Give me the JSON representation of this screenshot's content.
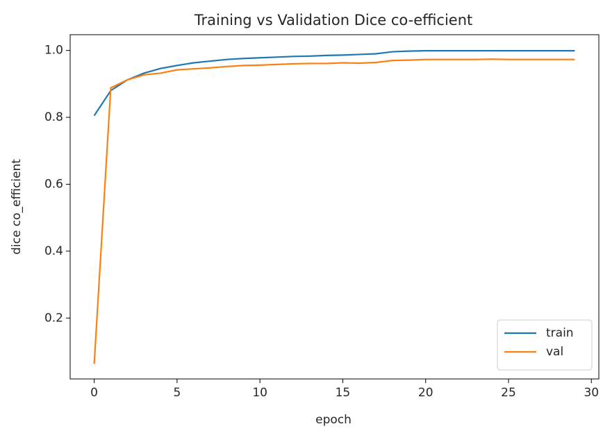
{
  "chart_data": {
    "type": "line",
    "title": "Training vs Validation Dice co-efficient",
    "x_label": "epoch",
    "y_label": "dice co_efficient",
    "x": [
      0,
      1,
      2,
      3,
      4,
      5,
      6,
      7,
      8,
      9,
      10,
      11,
      12,
      13,
      14,
      15,
      16,
      17,
      18,
      19,
      20,
      21,
      22,
      23,
      24,
      25,
      26,
      27,
      28,
      29
    ],
    "series": [
      {
        "name": "train",
        "color": "#1f77b4",
        "values": [
          0.805,
          0.88,
          0.912,
          0.932,
          0.946,
          0.955,
          0.963,
          0.968,
          0.973,
          0.976,
          0.978,
          0.98,
          0.982,
          0.983,
          0.985,
          0.986,
          0.988,
          0.99,
          0.996,
          0.998,
          0.999,
          0.999,
          0.999,
          0.999,
          0.999,
          0.999,
          0.999,
          0.999,
          0.999,
          0.999
        ]
      },
      {
        "name": "val",
        "color": "#ff7f0e",
        "values": [
          0.063,
          0.888,
          0.912,
          0.927,
          0.932,
          0.942,
          0.945,
          0.948,
          0.952,
          0.955,
          0.956,
          0.958,
          0.96,
          0.961,
          0.961,
          0.963,
          0.962,
          0.964,
          0.97,
          0.971,
          0.973,
          0.973,
          0.973,
          0.973,
          0.974,
          0.973,
          0.973,
          0.973,
          0.973,
          0.973
        ]
      }
    ],
    "xlim": [
      -1.45,
      30.45
    ],
    "xticks": [
      0,
      5,
      10,
      15,
      20,
      25,
      30
    ],
    "ylim": [
      0.018,
      1.047
    ],
    "yticks": [
      0.2,
      0.4,
      0.6,
      0.8,
      {
        "value": 1,
        "label": "1.0"
      }
    ],
    "legend": "lower right",
    "grid": false
  }
}
